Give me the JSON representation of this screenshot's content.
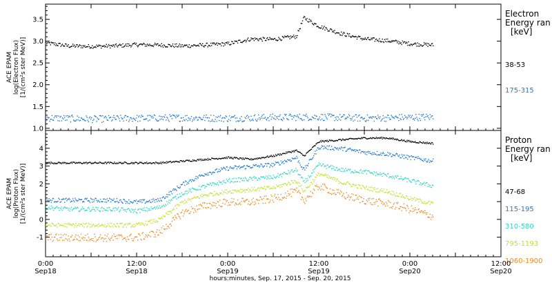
{
  "chart_data": [
    {
      "type": "scatter",
      "panel": "top",
      "ylabel_lines": [
        "ACE EPAM",
        "log(Electron Flux)",
        "[1/(cm²s ster MeV)]"
      ],
      "ylim": [
        0.95,
        3.85
      ],
      "xlim": [
        0,
        120
      ],
      "yticks": [
        1.0,
        1.5,
        2.0,
        2.5,
        3.0,
        3.5
      ],
      "ytick_labels": [
        "1.0",
        "1.5",
        "2.0",
        "2.5",
        "3.0",
        "3.5"
      ],
      "legend": {
        "title_lines": [
          "Electron",
          "Energy ran",
          "[keV]"
        ],
        "placement": "right"
      },
      "series": [
        {
          "name": "38-53",
          "color": "#000000",
          "x": [
            0,
            6,
            12,
            18,
            24,
            30,
            36,
            42,
            48,
            54,
            60,
            66,
            68,
            72,
            78,
            84,
            90,
            96,
            102
          ],
          "y": [
            2.97,
            2.9,
            2.89,
            2.9,
            2.93,
            2.92,
            2.9,
            2.92,
            2.95,
            3.06,
            3.05,
            3.12,
            3.55,
            3.35,
            3.18,
            3.06,
            3.02,
            2.95,
            2.92
          ]
        },
        {
          "name": "175-315",
          "color": "#1f77d0",
          "x": [
            0,
            12,
            24,
            36,
            48,
            60,
            72,
            84,
            96,
            102
          ],
          "y": [
            1.25,
            1.22,
            1.24,
            1.25,
            1.24,
            1.26,
            1.27,
            1.24,
            1.26,
            1.27
          ]
        }
      ]
    },
    {
      "type": "scatter",
      "panel": "bottom",
      "ylabel_lines": [
        "ACE EPAM",
        "log(Proton Flux)",
        "[1/(cm²s ster MeV)]"
      ],
      "ylim": [
        -2.1,
        5.0
      ],
      "xlim": [
        0,
        120
      ],
      "yticks": [
        -1,
        0,
        1,
        2,
        3,
        4
      ],
      "ytick_labels": [
        "-1",
        "0",
        "1",
        "2",
        "3",
        "4"
      ],
      "legend": {
        "title_lines": [
          "Proton",
          "Energy ran",
          "[keV]"
        ],
        "placement": "right"
      },
      "series": [
        {
          "name": "47-68",
          "color": "#000000",
          "x": [
            0,
            6,
            12,
            18,
            24,
            30,
            36,
            42,
            48,
            54,
            60,
            66,
            68,
            72,
            78,
            84,
            90,
            96,
            102
          ],
          "y": [
            3.2,
            3.2,
            3.2,
            3.2,
            3.2,
            3.2,
            3.3,
            3.4,
            3.5,
            3.4,
            3.6,
            3.9,
            3.6,
            4.4,
            4.5,
            4.6,
            4.6,
            4.4,
            4.3
          ]
        },
        {
          "name": "115-195",
          "color": "#1f77d0",
          "x": [
            0,
            6,
            12,
            18,
            24,
            30,
            36,
            42,
            48,
            54,
            60,
            66,
            68,
            72,
            78,
            84,
            90,
            96,
            102
          ],
          "y": [
            1.1,
            1.1,
            1.1,
            1.1,
            1.0,
            1.1,
            2.0,
            2.6,
            2.9,
            3.0,
            3.1,
            3.5,
            2.8,
            4.1,
            4.0,
            3.8,
            3.7,
            3.5,
            3.3
          ]
        },
        {
          "name": "310-580",
          "color": "#2fd6c2",
          "x": [
            0,
            6,
            12,
            18,
            24,
            30,
            36,
            42,
            48,
            54,
            60,
            66,
            68,
            72,
            78,
            84,
            90,
            96,
            102
          ],
          "y": [
            0.7,
            0.6,
            0.6,
            0.6,
            0.5,
            0.7,
            1.5,
            1.9,
            2.2,
            2.3,
            2.4,
            2.8,
            2.1,
            3.1,
            2.8,
            2.7,
            2.5,
            2.2,
            1.9
          ]
        },
        {
          "name": "795-1193",
          "color": "#c2e02b",
          "x": [
            0,
            6,
            12,
            18,
            24,
            30,
            36,
            42,
            48,
            54,
            60,
            66,
            68,
            72,
            78,
            84,
            90,
            96,
            102
          ],
          "y": [
            -0.3,
            -0.3,
            -0.3,
            -0.3,
            -0.3,
            0.0,
            1.0,
            1.4,
            1.6,
            1.7,
            1.8,
            2.2,
            1.6,
            2.6,
            2.1,
            1.8,
            1.6,
            1.2,
            0.9
          ]
        },
        {
          "name": "1060-1900",
          "color": "#ef8a1f",
          "x": [
            0,
            6,
            12,
            18,
            24,
            30,
            36,
            42,
            48,
            54,
            60,
            66,
            68,
            72,
            78,
            84,
            90,
            96,
            102
          ],
          "y": [
            -1.0,
            -1.0,
            -1.0,
            -1.0,
            -1.0,
            -0.7,
            0.4,
            0.8,
            1.0,
            1.0,
            1.2,
            1.6,
            1.1,
            1.9,
            1.4,
            1.1,
            0.9,
            0.6,
            0.2
          ]
        }
      ]
    }
  ],
  "x_axis": {
    "ticks": [
      0,
      12,
      24,
      36,
      48,
      60,
      72,
      84,
      96,
      108,
      120
    ],
    "major_labels": [
      {
        "x": 0,
        "time": "0:00",
        "date": "Sep18"
      },
      {
        "x": 24,
        "time": "12:00",
        "date": "Sep18"
      },
      {
        "x": 48,
        "time": "0:00",
        "date": "Sep19"
      },
      {
        "x": 72,
        "time": "12:00",
        "date": "Sep19"
      },
      {
        "x": 96,
        "time": "0:00",
        "date": "Sep20"
      },
      {
        "x": 120,
        "time": "12:00",
        "date": "Sep20"
      }
    ],
    "title": "hours:minutes, Sep. 17, 2015 - Sep. 20, 2015"
  }
}
